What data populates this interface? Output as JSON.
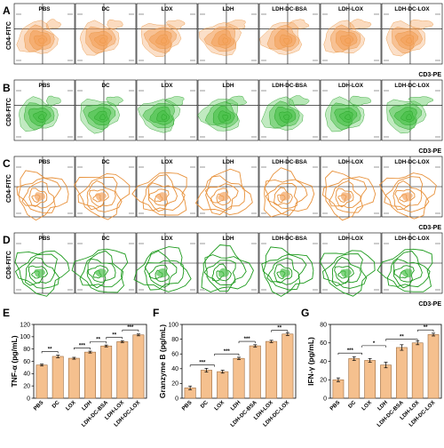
{
  "figure": {
    "rows": [
      {
        "label": "A",
        "color": "#f4a460",
        "contour": "#e8913a",
        "ylabel": "CD4-FITC",
        "xlabel": "CD3-PE",
        "style": "compact"
      },
      {
        "label": "B",
        "color": "#4cc24c",
        "contour": "#1c9a1c",
        "ylabel": "CD8-FITC",
        "xlabel": "CD3-PE",
        "style": "compact"
      },
      {
        "label": "C",
        "color": "#f4a460",
        "contour": "#e8913a",
        "ylabel": "CD4-FITC",
        "xlabel": "CD3-PE",
        "style": "spread"
      },
      {
        "label": "D",
        "color": "#4cc24c",
        "contour": "#1c9a1c",
        "ylabel": "CD8-FITC",
        "xlabel": "CD3-PE",
        "style": "spread"
      }
    ],
    "groups": [
      "PBS",
      "DC",
      "LOX",
      "LDH",
      "LDH-DC-BSA",
      "LDH-LOX",
      "LDH-DC-LOX"
    ]
  },
  "chart_data": [
    {
      "type": "bar",
      "panel": "E",
      "ylabel": "TNF-α (pg/mL)",
      "categories": [
        "PBS",
        "DC",
        "LOX",
        "LDH",
        "LDH-DC-BSA",
        "LDH-LOX",
        "LDH-DC-LOX"
      ],
      "values": [
        54,
        68,
        65,
        75,
        85,
        92,
        103
      ],
      "errors": [
        1.5,
        2,
        1.5,
        1.5,
        1.5,
        1.5,
        1.5
      ],
      "ylim": [
        0,
        120
      ],
      "yticks": [
        "0",
        "20",
        "40",
        "60",
        "80",
        "100",
        "120"
      ],
      "significance": [
        {
          "from": 0,
          "to": 1,
          "label": "**",
          "y": 76
        },
        {
          "from": 2,
          "to": 3,
          "label": "***",
          "y": 82
        },
        {
          "from": 3,
          "to": 4,
          "label": "**",
          "y": 92
        },
        {
          "from": 4,
          "to": 5,
          "label": "**",
          "y": 99
        },
        {
          "from": 5,
          "to": 6,
          "label": "***",
          "y": 111
        }
      ],
      "bar_color": "#f5c08e",
      "edge_color": "#9c6b3e"
    },
    {
      "type": "bar",
      "panel": "F",
      "ylabel": "Granzyme B (pg/mL)",
      "categories": [
        "PBS",
        "DC",
        "LOX",
        "LDH",
        "LDH-DC-BSA",
        "LDH-LOX",
        "LDH-DC-LOX"
      ],
      "values": [
        14,
        38,
        36,
        54,
        71,
        77,
        87
      ],
      "errors": [
        2.5,
        2.5,
        2,
        1.5,
        1.5,
        1.5,
        2
      ],
      "ylim": [
        0,
        100
      ],
      "yticks": [
        "0",
        "20",
        "40",
        "60",
        "80",
        "100"
      ],
      "significance": [
        {
          "from": 0,
          "to": 1.5,
          "label": "***",
          "y": 45
        },
        {
          "from": 1.5,
          "to": 3,
          "label": "***",
          "y": 60
        },
        {
          "from": 3,
          "to": 4,
          "label": "***",
          "y": 77
        },
        {
          "from": 5,
          "to": 6,
          "label": "**",
          "y": 92
        }
      ],
      "bar_color": "#f5c08e",
      "edge_color": "#9c6b3e"
    },
    {
      "type": "bar",
      "panel": "G",
      "ylabel": "IFN-γ (pg/mL)",
      "categories": [
        "PBS",
        "DC",
        "LOX",
        "LDH",
        "LDH-DC-BSA",
        "LDH-LOX",
        "LDH-DC-LOX"
      ],
      "values": [
        20,
        43,
        41,
        36,
        55,
        60,
        69
      ],
      "errors": [
        2,
        2,
        2,
        3,
        3,
        2,
        1.5
      ],
      "ylim": [
        0,
        80
      ],
      "yticks": [
        "0",
        "20",
        "40",
        "60",
        "80"
      ],
      "significance": [
        {
          "from": 0,
          "to": 1.5,
          "label": "***",
          "y": 49
        },
        {
          "from": 1.5,
          "to": 3,
          "label": "*",
          "y": 57
        },
        {
          "from": 3,
          "to": 5,
          "label": "**",
          "y": 64
        },
        {
          "from": 5,
          "to": 6,
          "label": "**",
          "y": 74
        }
      ],
      "bar_color": "#f5c08e",
      "edge_color": "#9c6b3e"
    }
  ]
}
